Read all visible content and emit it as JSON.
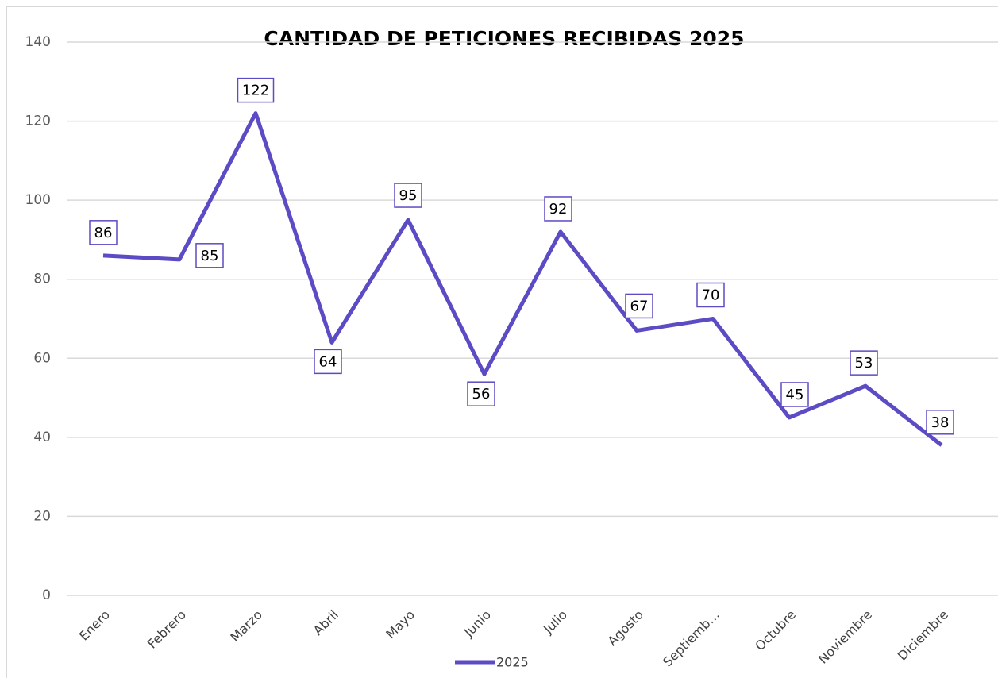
{
  "chart_data": {
    "type": "line",
    "title": "CANTIDAD DE PETICIONES RECIBIDAS 2025",
    "categories": [
      "Enero",
      "Febrero",
      "Marzo",
      "Abril",
      "Mayo",
      "Junio",
      "Julio",
      "Agosto",
      "Septiemb…",
      "Octubre",
      "Noviembre",
      "Diciembre"
    ],
    "series": [
      {
        "name": "2025",
        "color": "#5b4bc4",
        "values": [
          86,
          85,
          122,
          64,
          95,
          56,
          92,
          67,
          70,
          45,
          53,
          38
        ]
      }
    ],
    "ylim": [
      0,
      140
    ],
    "yticks": [
      0,
      20,
      40,
      60,
      80,
      100,
      120,
      140
    ],
    "grid": true,
    "legend": "bottom"
  }
}
